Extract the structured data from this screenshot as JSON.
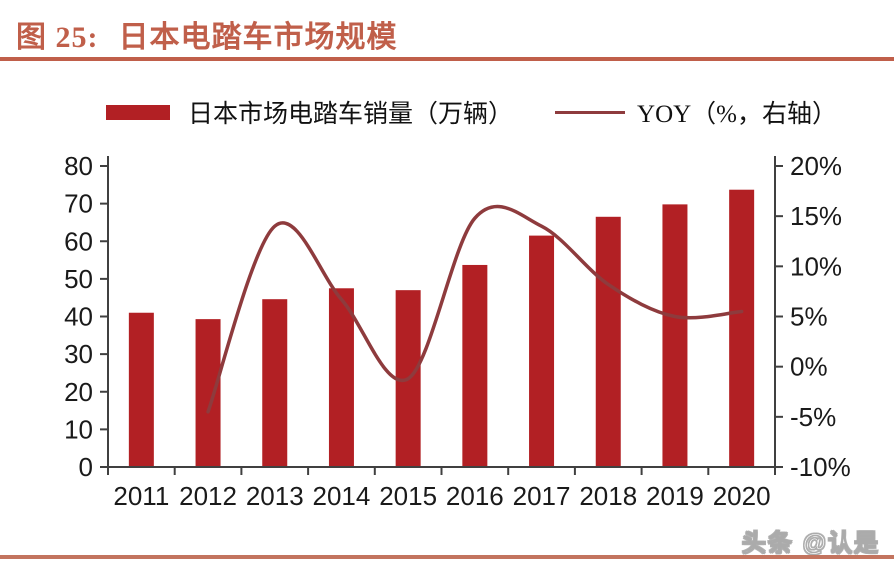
{
  "figure": {
    "label": "图 25:",
    "title": "日本电踏车市场规模"
  },
  "legend": {
    "bar_label": "日本市场电踏车销量（万辆）",
    "line_label": "YOY（%，右轴）"
  },
  "watermark": "头条 @认是",
  "colors": {
    "bar": "#B22024",
    "line": "#8E3B3D",
    "title_accent": "#C05F4A",
    "bottom_rule": "#C3745F",
    "axis": "#404040",
    "tick_label": "#1A1A1A"
  },
  "chart_data": {
    "type": "bar",
    "title": "日本电踏车市场规模",
    "categories": [
      "2011",
      "2012",
      "2013",
      "2014",
      "2015",
      "2016",
      "2017",
      "2018",
      "2019",
      "2020"
    ],
    "series": [
      {
        "name": "日本市场电踏车销量（万辆）",
        "type": "bar",
        "axis": "left",
        "values": [
          41,
          39.3,
          44.6,
          47.5,
          47,
          53.7,
          61.5,
          66.5,
          69.8,
          73.7
        ]
      },
      {
        "name": "YOY（%，右轴）",
        "type": "line",
        "axis": "right",
        "values": [
          null,
          -4.5,
          14,
          6.7,
          -1.2,
          14.8,
          14,
          8.2,
          5,
          5.5
        ]
      }
    ],
    "left_axis": {
      "min": 0,
      "max": 80,
      "step": 10,
      "suffix": ""
    },
    "right_axis": {
      "min": -10,
      "max": 20,
      "step": 5,
      "suffix": "%"
    },
    "grid": false,
    "legend_position": "top"
  }
}
